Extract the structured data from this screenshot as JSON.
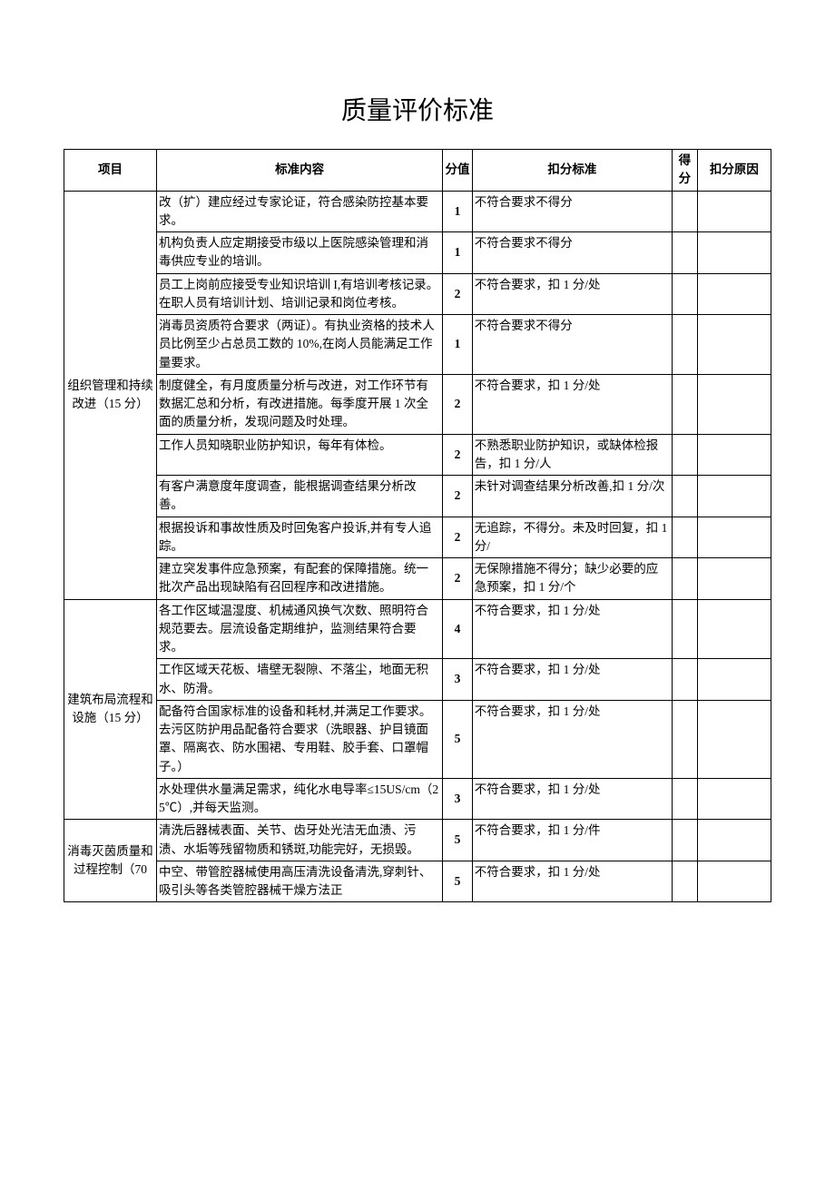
{
  "title": "质量评价标准",
  "headers": {
    "category": "项目",
    "content": "标准内容",
    "score": "分值",
    "deduction": "扣分标准",
    "got": "得分",
    "reason": "扣分原因"
  },
  "sections": [
    {
      "category": "组织管理和持续改进（15 分）",
      "rows": [
        {
          "content": "改（扩）建应经过专家论证，符合感染防控基本要求。",
          "score": "1",
          "deduction": "不符合要求不得分"
        },
        {
          "content": "机构负责人应定期接受市级以上医院感染管理和消毒供应专业的培训。",
          "score": "1",
          "deduction": "不符合要求不得分"
        },
        {
          "content": "员工上岗前应接受专业知识培训 I,有培训考核记录。在职人员有培训计划、培训记录和岗位考核。",
          "score": "2",
          "deduction": "不符合要求，扣 1 分/处"
        },
        {
          "content": "消毒员资质符合要求（两证）。有执业资格的技术人员比例至少占总员工数的 10%,在岗人员能满足工作量要求。",
          "score": "1",
          "deduction": "不符合要求不得分"
        },
        {
          "content": "制度健全，有月度质量分析与改进，对工作环节有数据汇总和分析，有改进措施。每季度开展 1 次全面的质量分析，发现问题及时处理。",
          "score": "2",
          "deduction": "不符合要求，扣 1 分/处"
        },
        {
          "content": "工作人员知晓职业防护知识，每年有体检。",
          "score": "2",
          "deduction": "不熟悉职业防护知识，或缺体检报告，扣 1 分/人"
        },
        {
          "content": "有客户满意度年度调查，能根据调查结果分析改善。",
          "score": "2",
          "deduction": "未针对调查结果分析改善,扣 1 分/次"
        },
        {
          "content": "根据投诉和事故性质及时回兔客户投诉,并有专人追踪。",
          "score": "2",
          "deduction": "无追踪，不得分。未及时回复，扣 1 分/"
        },
        {
          "content": "建立突发事件应急预案，有配套的保障措施。统一批次产品出现缺陷有召回程序和改进措施。",
          "score": "2",
          "deduction": "无保隙措施不得分；缺少必要的应急预案，扣 1 分/个"
        }
      ]
    },
    {
      "category": "建筑布局流程和设施（15 分）",
      "rows": [
        {
          "content": "各工作区域温湿度、机械通风换气次数、照明符合规范要去。层流设备定期维护，监测结果符合要求。",
          "score": "4",
          "deduction": "不符合要求，扣 1 分/处"
        },
        {
          "content": "工作区域天花板、墙壁无裂隙、不落尘，地面无积水、防滑。",
          "score": "3",
          "deduction": "不符合要求，扣 1 分/处"
        },
        {
          "content": "配备符合国家标准的设备和耗材,并满足工作要求。去污区防护用品配备符合要求（洗眼器、护目镜面罩、隔离衣、防水围裙、专用鞋、胶手套、口罩帽子。）",
          "score": "5",
          "deduction": "不符合要求，扣 1 分/处"
        },
        {
          "content": "水处理供水量满足需求，纯化水电导率≤15US/cm（25℃）,并每天监测。",
          "score": "3",
          "deduction": "不符合要求，扣 1 分/处"
        }
      ]
    },
    {
      "category": "消毒灭茵质量和过程控制（70",
      "rows": [
        {
          "content": "清洗后器械表面、关节、齿牙处光洁无血渍、污渍、水垢等残留物质和锈斑,功能完好，无损毁。",
          "score": "5",
          "deduction": "不符合要求，扣 1 分/件"
        },
        {
          "content": "中空、带管腔器械使用高压清洗设备清洗,穿刺针、吸引头等各类管腔器械干燥方法正",
          "score": "5",
          "deduction": "不符合要求，扣 1 分/处"
        }
      ]
    }
  ]
}
